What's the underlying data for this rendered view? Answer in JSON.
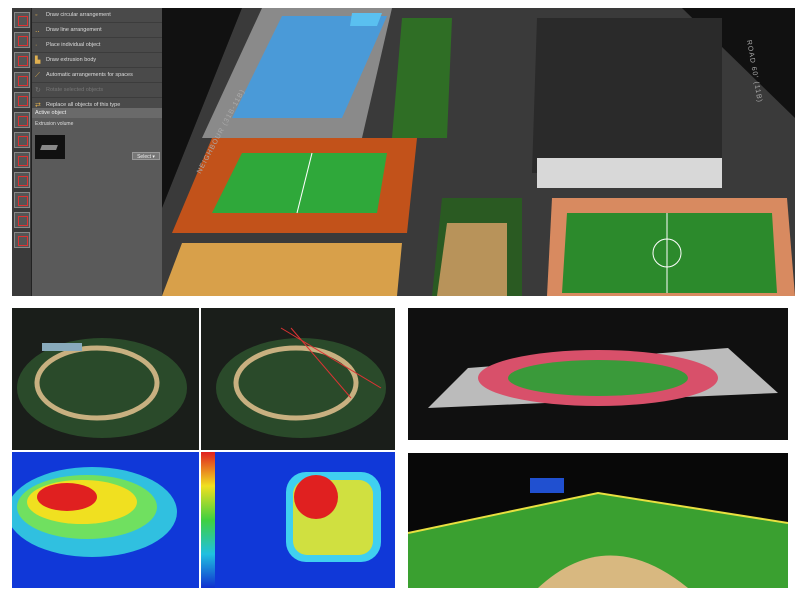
{
  "menu": {
    "items": [
      {
        "label": "Draw circular arrangement",
        "icon": "circle-arrangement-icon",
        "enabled": true
      },
      {
        "label": "Draw line arrangement",
        "icon": "line-arrangement-icon",
        "enabled": true
      },
      {
        "label": "Place individual object",
        "icon": "place-object-icon",
        "enabled": true
      },
      {
        "label": "Draw extrusion body",
        "icon": "extrusion-icon",
        "enabled": true
      },
      {
        "label": "Automatic arrangements for spaces",
        "icon": "auto-arrange-icon",
        "enabled": true
      },
      {
        "label": "Rotate selected objects",
        "icon": "rotate-icon",
        "enabled": false
      },
      {
        "label": "Replace all objects of this type",
        "icon": "replace-icon",
        "enabled": true
      }
    ]
  },
  "active_object": {
    "header": "Active object",
    "name": "Extrusion volume",
    "select_label": "Select"
  },
  "scene": {
    "road_left": "NEIGHBOUR (31B-11B)",
    "road_right": "ROAD 60' (11B)"
  },
  "colors": {
    "tennis": "#2fa83a",
    "clay": "#c2521a",
    "pool": "#4a9ad8",
    "track": "#d8506a",
    "grass": "#2c8a2c"
  }
}
